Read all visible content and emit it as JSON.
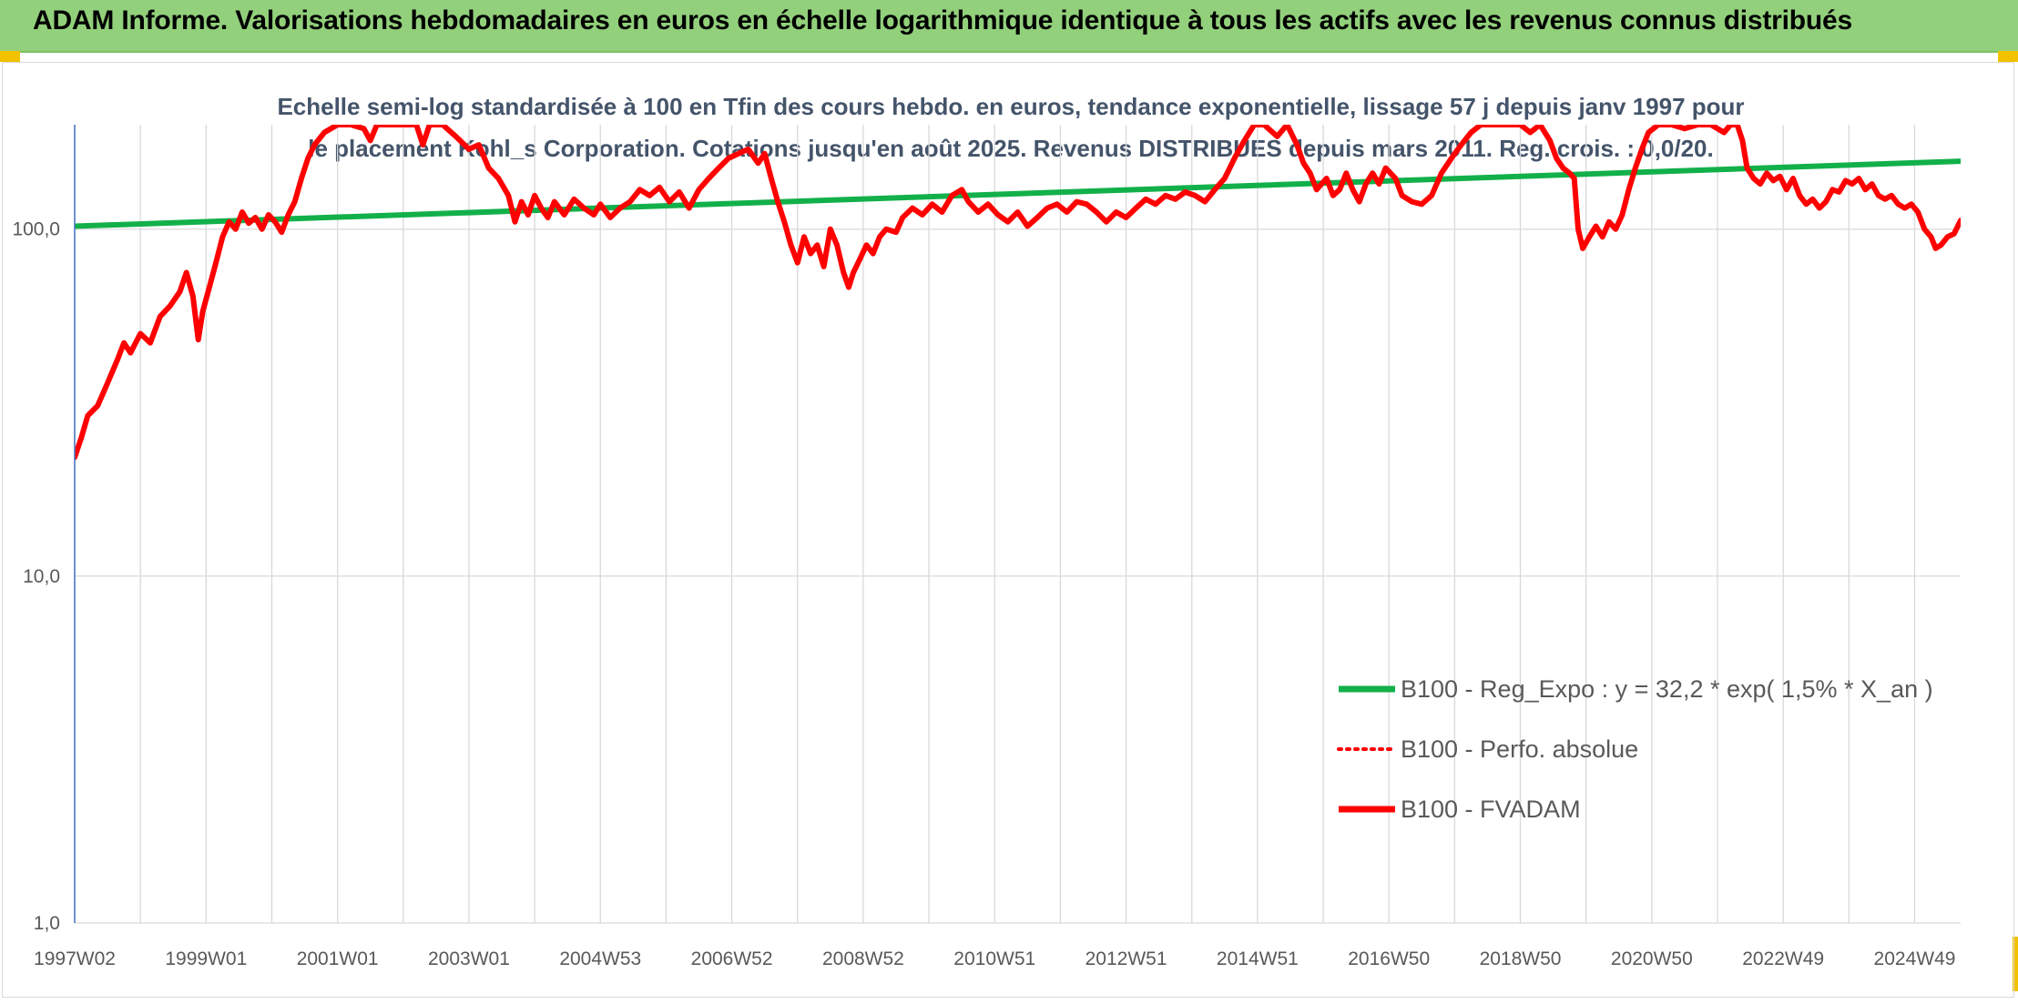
{
  "header": {
    "title": "ADAM Informe. Valorisations hebdomadaires en euros en échelle logarithmique identique à tous les actifs avec les revenus connus distribués"
  },
  "colors": {
    "header_bg": "#92d07b",
    "trend": "#12b04a",
    "perf": "#ff0000",
    "fvadam": "#ff0000",
    "axis": "#4472c4",
    "grid": "#d9d9d9",
    "title_text": "#44546a",
    "label_text": "#595959"
  },
  "chart_data": {
    "type": "line",
    "title": "Echelle semi-log standardisée à 100 en Tfin des cours hebdo. en euros, tendance exponentielle, lissage 57 j depuis janv 1997 pour le placement Kohl_s Corporation. Cotations jusqu'en août 2025. Revenus DISTRIBUES depuis mars 2011. Reg. crois. : 0,0/20.",
    "y_scale": "log",
    "ylim": [
      1,
      200
    ],
    "y_ticks": [
      {
        "value": 1,
        "label": "1,0"
      },
      {
        "value": 10,
        "label": "10,0"
      },
      {
        "value": 100,
        "label": "100,0"
      }
    ],
    "xlim": [
      1997.0,
      2025.7
    ],
    "x_ticks": [
      {
        "value": 1997.0,
        "label": "1997W02"
      },
      {
        "value": 1999.0,
        "label": "1999W01"
      },
      {
        "value": 2001.0,
        "label": "2001W01"
      },
      {
        "value": 2003.0,
        "label": "2003W01"
      },
      {
        "value": 2005.0,
        "label": "2004W53"
      },
      {
        "value": 2007.0,
        "label": "2006W52"
      },
      {
        "value": 2009.0,
        "label": "2008W52"
      },
      {
        "value": 2011.0,
        "label": "2010W51"
      },
      {
        "value": 2013.0,
        "label": "2012W51"
      },
      {
        "value": 2015.0,
        "label": "2014W51"
      },
      {
        "value": 2017.0,
        "label": "2016W50"
      },
      {
        "value": 2019.0,
        "label": "2018W50"
      },
      {
        "value": 2021.0,
        "label": "2020W50"
      },
      {
        "value": 2023.0,
        "label": "2022W49"
      },
      {
        "value": 2025.0,
        "label": "2024W49"
      }
    ],
    "legend_position": "bottom-right",
    "grid": true,
    "series": [
      {
        "name": "B100 - Reg_Expo : y = 32,2 * exp( 1,5% *  X_an )",
        "style": "solid-thick",
        "color": "#12b04a",
        "points": [
          [
            1997.0,
            102
          ],
          [
            2025.7,
            157
          ]
        ]
      },
      {
        "name": "B100 - Perfo. absolue",
        "style": "dotted",
        "color": "#ff0000",
        "points": []
      },
      {
        "name": "B100 - FVADAM",
        "style": "solid-thick",
        "color": "#ff0000",
        "points": [
          [
            1997.0,
            22
          ],
          [
            1997.1,
            25
          ],
          [
            1997.2,
            29
          ],
          [
            1997.35,
            31
          ],
          [
            1997.5,
            36
          ],
          [
            1997.65,
            42
          ],
          [
            1997.75,
            47
          ],
          [
            1997.85,
            44
          ],
          [
            1998.0,
            50
          ],
          [
            1998.15,
            47
          ],
          [
            1998.3,
            56
          ],
          [
            1998.45,
            60
          ],
          [
            1998.6,
            66
          ],
          [
            1998.7,
            75
          ],
          [
            1998.8,
            64
          ],
          [
            1998.88,
            48
          ],
          [
            1998.95,
            58
          ],
          [
            1999.05,
            68
          ],
          [
            1999.15,
            80
          ],
          [
            1999.25,
            95
          ],
          [
            1999.35,
            105
          ],
          [
            1999.45,
            100
          ],
          [
            1999.55,
            112
          ],
          [
            1999.65,
            104
          ],
          [
            1999.75,
            108
          ],
          [
            1999.85,
            100
          ],
          [
            1999.95,
            110
          ],
          [
            2000.05,
            105
          ],
          [
            2000.15,
            98
          ],
          [
            2000.25,
            110
          ],
          [
            2000.35,
            120
          ],
          [
            2000.45,
            140
          ],
          [
            2000.55,
            160
          ],
          [
            2000.65,
            175
          ],
          [
            2000.8,
            190
          ],
          [
            2001.0,
            200
          ],
          [
            2001.2,
            200
          ],
          [
            2001.4,
            195
          ],
          [
            2001.5,
            180
          ],
          [
            2001.6,
            200
          ],
          [
            2001.8,
            200
          ],
          [
            2002.0,
            200
          ],
          [
            2002.2,
            200
          ],
          [
            2002.3,
            175
          ],
          [
            2002.4,
            200
          ],
          [
            2002.6,
            200
          ],
          [
            2002.8,
            185
          ],
          [
            2003.0,
            170
          ],
          [
            2003.15,
            175
          ],
          [
            2003.3,
            150
          ],
          [
            2003.45,
            140
          ],
          [
            2003.6,
            125
          ],
          [
            2003.7,
            105
          ],
          [
            2003.8,
            120
          ],
          [
            2003.9,
            110
          ],
          [
            2004.0,
            125
          ],
          [
            2004.1,
            115
          ],
          [
            2004.2,
            108
          ],
          [
            2004.3,
            120
          ],
          [
            2004.45,
            110
          ],
          [
            2004.6,
            122
          ],
          [
            2004.75,
            115
          ],
          [
            2004.9,
            110
          ],
          [
            2005.0,
            118
          ],
          [
            2005.15,
            108
          ],
          [
            2005.3,
            115
          ],
          [
            2005.45,
            120
          ],
          [
            2005.6,
            130
          ],
          [
            2005.75,
            125
          ],
          [
            2005.9,
            132
          ],
          [
            2006.05,
            120
          ],
          [
            2006.2,
            128
          ],
          [
            2006.35,
            115
          ],
          [
            2006.5,
            130
          ],
          [
            2006.65,
            140
          ],
          [
            2006.8,
            150
          ],
          [
            2006.95,
            160
          ],
          [
            2007.1,
            165
          ],
          [
            2007.25,
            170
          ],
          [
            2007.4,
            155
          ],
          [
            2007.5,
            165
          ],
          [
            2007.6,
            140
          ],
          [
            2007.7,
            120
          ],
          [
            2007.8,
            105
          ],
          [
            2007.9,
            90
          ],
          [
            2008.0,
            80
          ],
          [
            2008.1,
            95
          ],
          [
            2008.2,
            85
          ],
          [
            2008.3,
            90
          ],
          [
            2008.4,
            78
          ],
          [
            2008.5,
            100
          ],
          [
            2008.6,
            90
          ],
          [
            2008.7,
            75
          ],
          [
            2008.78,
            68
          ],
          [
            2008.85,
            75
          ],
          [
            2008.95,
            82
          ],
          [
            2009.05,
            90
          ],
          [
            2009.15,
            85
          ],
          [
            2009.25,
            95
          ],
          [
            2009.35,
            100
          ],
          [
            2009.5,
            98
          ],
          [
            2009.6,
            108
          ],
          [
            2009.75,
            115
          ],
          [
            2009.9,
            110
          ],
          [
            2010.05,
            118
          ],
          [
            2010.2,
            112
          ],
          [
            2010.35,
            125
          ],
          [
            2010.5,
            130
          ],
          [
            2010.6,
            120
          ],
          [
            2010.75,
            112
          ],
          [
            2010.9,
            118
          ],
          [
            2011.05,
            110
          ],
          [
            2011.2,
            105
          ],
          [
            2011.35,
            112
          ],
          [
            2011.5,
            102
          ],
          [
            2011.65,
            108
          ],
          [
            2011.8,
            115
          ],
          [
            2011.95,
            118
          ],
          [
            2012.1,
            112
          ],
          [
            2012.25,
            120
          ],
          [
            2012.4,
            118
          ],
          [
            2012.55,
            112
          ],
          [
            2012.7,
            105
          ],
          [
            2012.85,
            112
          ],
          [
            2013.0,
            108
          ],
          [
            2013.15,
            115
          ],
          [
            2013.3,
            122
          ],
          [
            2013.45,
            118
          ],
          [
            2013.6,
            125
          ],
          [
            2013.75,
            122
          ],
          [
            2013.9,
            128
          ],
          [
            2014.05,
            125
          ],
          [
            2014.2,
            120
          ],
          [
            2014.35,
            130
          ],
          [
            2014.5,
            140
          ],
          [
            2014.65,
            160
          ],
          [
            2014.8,
            180
          ],
          [
            2014.95,
            200
          ],
          [
            2015.1,
            200
          ],
          [
            2015.3,
            185
          ],
          [
            2015.45,
            200
          ],
          [
            2015.6,
            175
          ],
          [
            2015.7,
            155
          ],
          [
            2015.8,
            145
          ],
          [
            2015.9,
            130
          ],
          [
            2016.05,
            140
          ],
          [
            2016.15,
            125
          ],
          [
            2016.25,
            130
          ],
          [
            2016.35,
            145
          ],
          [
            2016.45,
            130
          ],
          [
            2016.55,
            120
          ],
          [
            2016.65,
            135
          ],
          [
            2016.75,
            145
          ],
          [
            2016.85,
            135
          ],
          [
            2016.95,
            150
          ],
          [
            2017.1,
            140
          ],
          [
            2017.2,
            125
          ],
          [
            2017.35,
            120
          ],
          [
            2017.5,
            118
          ],
          [
            2017.65,
            125
          ],
          [
            2017.8,
            145
          ],
          [
            2017.95,
            160
          ],
          [
            2018.1,
            175
          ],
          [
            2018.25,
            190
          ],
          [
            2018.4,
            200
          ],
          [
            2018.6,
            200
          ],
          [
            2018.8,
            200
          ],
          [
            2019.0,
            200
          ],
          [
            2019.15,
            190
          ],
          [
            2019.3,
            200
          ],
          [
            2019.45,
            180
          ],
          [
            2019.55,
            160
          ],
          [
            2019.65,
            150
          ],
          [
            2019.75,
            145
          ],
          [
            2019.82,
            140
          ],
          [
            2019.88,
            100
          ],
          [
            2019.95,
            88
          ],
          [
            2020.05,
            95
          ],
          [
            2020.15,
            102
          ],
          [
            2020.25,
            95
          ],
          [
            2020.35,
            105
          ],
          [
            2020.45,
            100
          ],
          [
            2020.55,
            110
          ],
          [
            2020.65,
            130
          ],
          [
            2020.75,
            150
          ],
          [
            2020.85,
            170
          ],
          [
            2020.95,
            190
          ],
          [
            2021.1,
            200
          ],
          [
            2021.3,
            200
          ],
          [
            2021.5,
            195
          ],
          [
            2021.7,
            200
          ],
          [
            2021.9,
            200
          ],
          [
            2022.1,
            190
          ],
          [
            2022.2,
            200
          ],
          [
            2022.3,
            200
          ],
          [
            2022.38,
            180
          ],
          [
            2022.45,
            150
          ],
          [
            2022.55,
            140
          ],
          [
            2022.65,
            135
          ],
          [
            2022.75,
            145
          ],
          [
            2022.85,
            138
          ],
          [
            2022.95,
            142
          ],
          [
            2023.05,
            130
          ],
          [
            2023.15,
            140
          ],
          [
            2023.25,
            125
          ],
          [
            2023.35,
            118
          ],
          [
            2023.45,
            122
          ],
          [
            2023.55,
            115
          ],
          [
            2023.65,
            120
          ],
          [
            2023.75,
            130
          ],
          [
            2023.85,
            128
          ],
          [
            2023.95,
            138
          ],
          [
            2024.05,
            135
          ],
          [
            2024.15,
            140
          ],
          [
            2024.25,
            130
          ],
          [
            2024.35,
            135
          ],
          [
            2024.45,
            125
          ],
          [
            2024.55,
            122
          ],
          [
            2024.65,
            125
          ],
          [
            2024.75,
            118
          ],
          [
            2024.85,
            115
          ],
          [
            2024.95,
            118
          ],
          [
            2025.05,
            112
          ],
          [
            2025.15,
            100
          ],
          [
            2025.25,
            95
          ],
          [
            2025.32,
            88
          ],
          [
            2025.4,
            90
          ],
          [
            2025.5,
            95
          ],
          [
            2025.6,
            97
          ],
          [
            2025.7,
            106
          ]
        ]
      }
    ]
  }
}
